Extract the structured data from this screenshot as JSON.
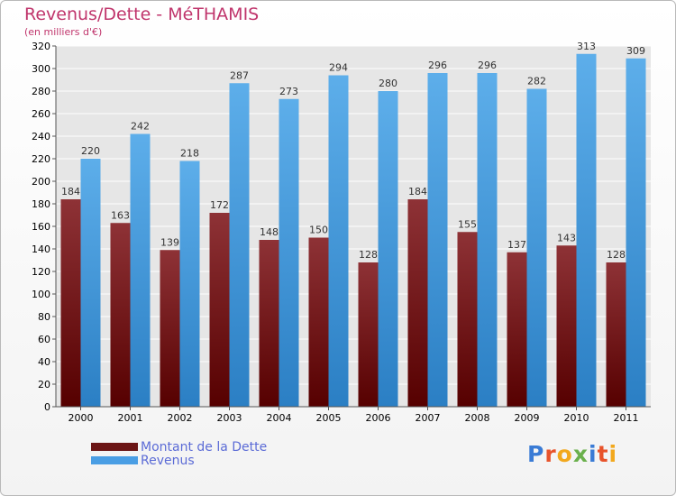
{
  "header": {
    "title": "Revenus/Dette - MéTHAMIS",
    "subtitle": "(en milliers d'€)"
  },
  "logo": {
    "letters": [
      "P",
      "r",
      "o",
      "x",
      "i",
      "t",
      "i"
    ],
    "colors": [
      "#3a7bd5",
      "#e8532b",
      "#f2a81d",
      "#6ab04c",
      "#3a7bd5",
      "#e8532b",
      "#f2a81d"
    ]
  },
  "chart_data": {
    "type": "bar",
    "title": "Revenus/Dette - MéTHAMIS",
    "subtitle": "(en milliers d'€)",
    "xlabel": "",
    "ylabel": "",
    "categories": [
      "2000",
      "2001",
      "2002",
      "2003",
      "2004",
      "2005",
      "2006",
      "2007",
      "2008",
      "2009",
      "2010",
      "2011"
    ],
    "series": [
      {
        "name": "Montant de la Dette",
        "color": "#6b1515",
        "values": [
          184,
          163,
          139,
          172,
          148,
          150,
          128,
          184,
          155,
          137,
          143,
          128
        ]
      },
      {
        "name": "Revenus",
        "color": "#4a9ee4",
        "values": [
          220,
          242,
          218,
          287,
          273,
          294,
          280,
          296,
          296,
          282,
          313,
          309
        ]
      }
    ],
    "ylim": [
      0,
      320
    ],
    "ytick_step": 20,
    "grid": true,
    "legend_position": "bottom-left"
  }
}
